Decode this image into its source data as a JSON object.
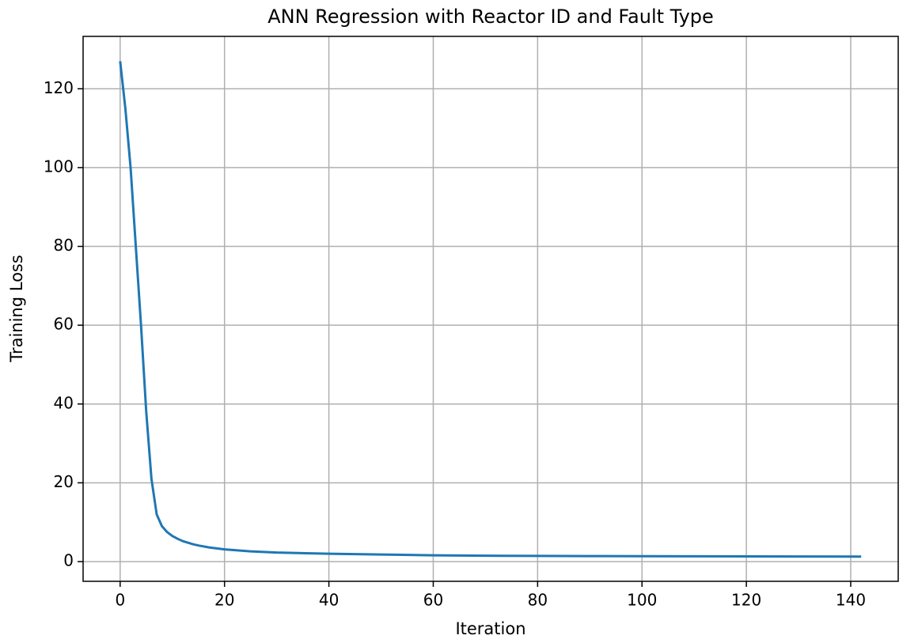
{
  "chart_data": {
    "type": "line",
    "title": "ANN Regression with Reactor ID and Fault Type",
    "x_label": "Iteration",
    "y_label": "Training Loss",
    "x": [
      0,
      1,
      2,
      3,
      4,
      5,
      6,
      7,
      8,
      9,
      10,
      11,
      12,
      13,
      14,
      15,
      17,
      20,
      25,
      30,
      40,
      50,
      60,
      70,
      80,
      90,
      100,
      110,
      120,
      130,
      142
    ],
    "series": [
      {
        "name": "Training Loss",
        "color": "#1f77b4",
        "values": [
          127,
          115,
          100,
          80,
          60,
          38,
          21,
          12,
          9,
          7.5,
          6.5,
          5.8,
          5.2,
          4.8,
          4.4,
          4.1,
          3.6,
          3.1,
          2.6,
          2.3,
          2.0,
          1.8,
          1.6,
          1.5,
          1.45,
          1.4,
          1.38,
          1.35,
          1.32,
          1.3,
          1.28
        ]
      }
    ],
    "xlim": [
      -7.1,
      149.1
    ],
    "ylim": [
      -5.0,
      133.3
    ],
    "xticks": [
      0,
      20,
      40,
      60,
      80,
      100,
      120,
      140
    ],
    "yticks": [
      0,
      20,
      40,
      60,
      80,
      100,
      120
    ],
    "grid": true
  }
}
